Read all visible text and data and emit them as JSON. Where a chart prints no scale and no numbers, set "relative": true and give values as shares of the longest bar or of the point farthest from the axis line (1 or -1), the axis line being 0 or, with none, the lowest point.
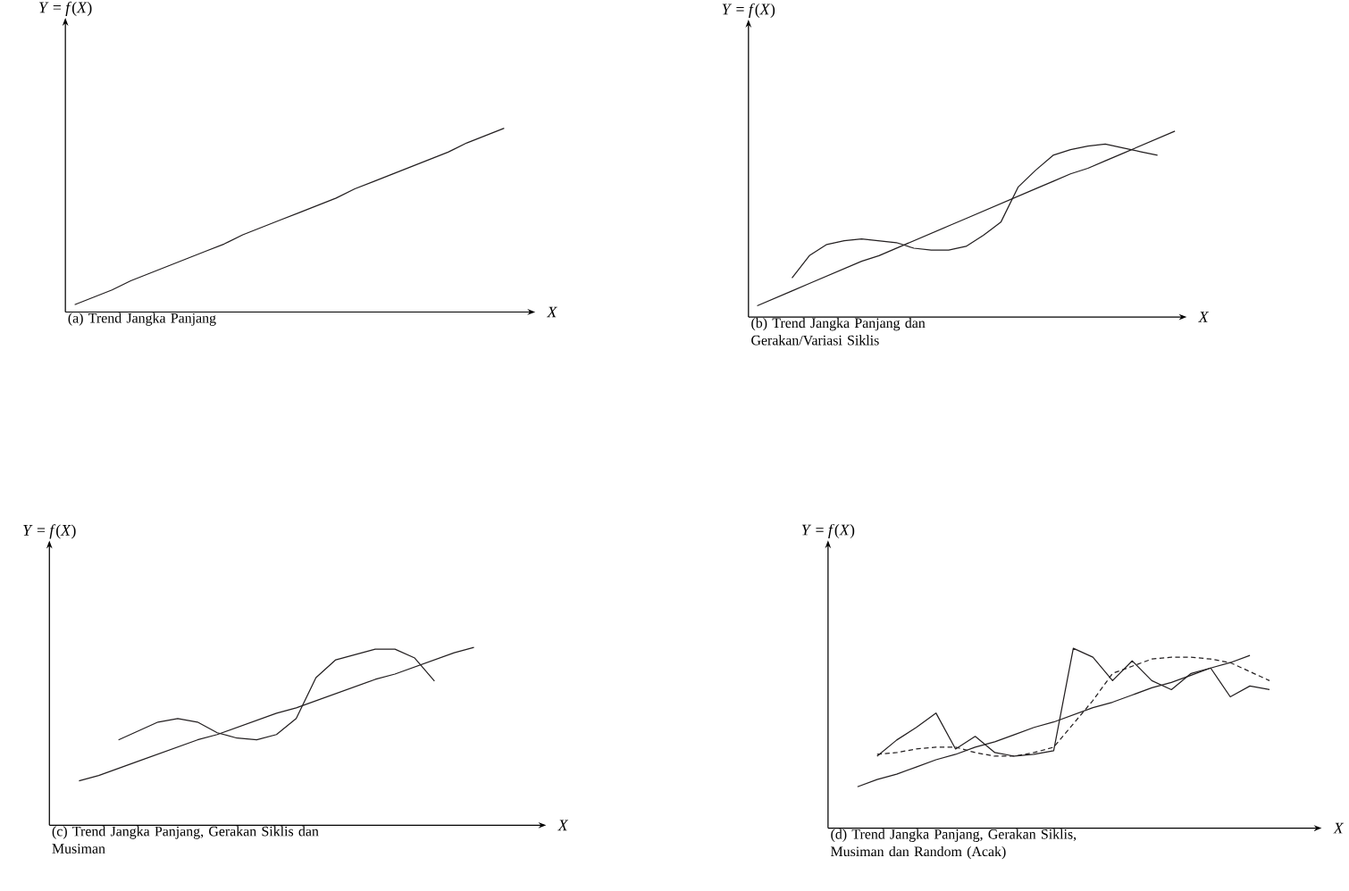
{
  "chart_data": [
    {
      "type": "line",
      "title": "(a)  Trend Jangka Panjang",
      "xlabel": "*X*",
      "ylabel": "*Y* = *f*(*X*)",
      "relative": true,
      "categories": [
        null,
        null,
        null,
        null,
        null,
        null,
        null,
        null,
        null,
        null,
        null,
        null,
        null,
        null,
        null,
        null,
        null,
        null,
        null,
        null,
        null,
        null,
        null,
        null,
        null
      ],
      "series": [
        {
          "color": "#231f20",
          "values": [
            0.04,
            0.08,
            0.12,
            0.17,
            0.21,
            0.25,
            0.29,
            0.33,
            0.37,
            0.42,
            0.46,
            0.5,
            0.54,
            0.58,
            0.62,
            0.67,
            0.71,
            0.75,
            0.79,
            0.83,
            0.87,
            0.92,
            0.96,
            1.0,
            null
          ]
        }
      ]
    },
    {
      "type": "line",
      "title": "(b)  Trend Jangka Panjang dan Gerakan/Variasi Siklis",
      "xlabel": "*X*",
      "ylabel": "*Y* = *f*(*X*)",
      "relative": true,
      "categories": [
        null,
        null,
        null,
        null,
        null,
        null,
        null,
        null,
        null,
        null,
        null,
        null,
        null,
        null,
        null,
        null,
        null,
        null,
        null,
        null,
        null,
        null,
        null,
        null,
        null
      ],
      "series": [
        {
          "color": "#231f20",
          "values": [
            0.06,
            0.1,
            0.14,
            0.18,
            0.22,
            0.26,
            0.3,
            0.33,
            0.37,
            0.41,
            0.45,
            0.49,
            0.53,
            0.57,
            0.61,
            0.65,
            0.69,
            0.73,
            0.77,
            0.8,
            0.84,
            0.88,
            0.92,
            0.96,
            1.0
          ]
        },
        {
          "color": "#231f20",
          "values": [
            null,
            null,
            0.21,
            0.33,
            0.39,
            0.41,
            0.42,
            0.41,
            0.4,
            0.37,
            0.36,
            0.36,
            0.38,
            0.44,
            0.51,
            0.7,
            0.79,
            0.87,
            0.9,
            0.92,
            0.93,
            0.91,
            0.89,
            0.87,
            null
          ]
        }
      ]
    },
    {
      "type": "line",
      "title": "(c)  Trend Jangka Panjang, Gerakan Siklis dan Musiman",
      "xlabel": "*X*",
      "ylabel": "*Y* = *f*(*X*)",
      "relative": true,
      "categories": [
        null,
        null,
        null,
        null,
        null,
        null,
        null,
        null,
        null,
        null,
        null,
        null,
        null,
        null,
        null,
        null,
        null,
        null,
        null,
        null,
        null,
        null,
        null,
        null,
        null
      ],
      "series": [
        {
          "color": "#231f20",
          "values": [
            null,
            0.25,
            0.28,
            0.32,
            0.36,
            0.4,
            0.44,
            0.48,
            0.51,
            0.55,
            0.59,
            0.63,
            0.66,
            0.7,
            0.74,
            0.78,
            0.82,
            0.85,
            0.89,
            0.93,
            0.97,
            1.0,
            null,
            null,
            null
          ]
        },
        {
          "color": "#231f20",
          "values": [
            null,
            null,
            null,
            0.48,
            0.53,
            0.58,
            0.6,
            0.58,
            0.52,
            0.49,
            0.48,
            0.51,
            0.6,
            0.83,
            0.93,
            0.96,
            0.99,
            0.99,
            0.94,
            0.81,
            null,
            null,
            null,
            null,
            null
          ]
        }
      ]
    },
    {
      "type": "line",
      "title": "(d)  Trend Jangka Panjang, Gerakan Siklis, Musiman dan Random (Acak)",
      "xlabel": "*X*",
      "ylabel": "*Y* = *f*(*X*)",
      "relative": true,
      "categories": [
        null,
        null,
        null,
        null,
        null,
        null,
        null,
        null,
        null,
        null,
        null,
        null,
        null,
        null,
        null,
        null,
        null,
        null,
        null,
        null,
        null,
        null,
        null,
        null,
        null
      ],
      "series": [
        {
          "color": "#231f20",
          "values": [
            null,
            0.23,
            0.27,
            0.3,
            0.34,
            0.38,
            0.41,
            0.45,
            0.48,
            0.52,
            0.56,
            0.59,
            0.63,
            0.67,
            0.7,
            0.74,
            0.78,
            0.81,
            0.85,
            0.89,
            0.92,
            0.96,
            null,
            null,
            null
          ]
        },
        {
          "color": "#231f20",
          "values": [
            null,
            null,
            0.4,
            0.49,
            0.56,
            0.64,
            0.44,
            0.51,
            0.42,
            0.4,
            0.41,
            0.43,
            1.0,
            0.95,
            0.82,
            0.93,
            0.82,
            0.77,
            0.86,
            0.89,
            0.73,
            0.79,
            0.77,
            null,
            null
          ]
        },
        {
          "color": "#231f20",
          "line_style": "dashed",
          "values": [
            null,
            null,
            0.41,
            0.42,
            0.44,
            0.45,
            0.45,
            0.42,
            0.4,
            0.4,
            0.42,
            0.45,
            0.58,
            0.71,
            0.86,
            0.9,
            0.94,
            0.95,
            0.95,
            0.94,
            0.92,
            0.87,
            0.82,
            null,
            null
          ]
        }
      ]
    }
  ]
}
